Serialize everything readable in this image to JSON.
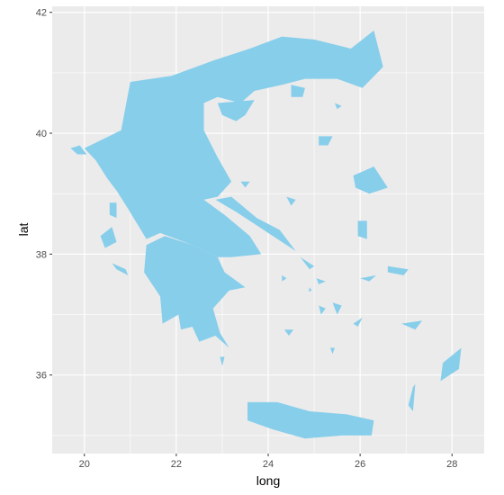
{
  "chart_data": {
    "type": "map",
    "region": "Greece",
    "xlabel": "long",
    "ylabel": "lat",
    "xlim": [
      19.3,
      28.7
    ],
    "ylim": [
      34.7,
      42.1
    ],
    "x_ticks": [
      20,
      22,
      24,
      26,
      28
    ],
    "x_tick_labels": [
      "20",
      "22",
      "24",
      "26",
      "28"
    ],
    "y_ticks": [
      36,
      38,
      40,
      42
    ],
    "y_tick_labels": [
      "36",
      "38",
      "40",
      "42"
    ],
    "grid": true,
    "fill_color": "#87CEEB",
    "panel_background": "#EBEBEB",
    "grid_color": "#FFFFFF",
    "shapes": [
      {
        "name": "mainland",
        "lonlat": [
          [
            20.0,
            39.75
          ],
          [
            20.8,
            40.05
          ],
          [
            21.0,
            40.85
          ],
          [
            21.9,
            40.95
          ],
          [
            22.8,
            41.2
          ],
          [
            23.6,
            41.4
          ],
          [
            24.3,
            41.6
          ],
          [
            25.0,
            41.55
          ],
          [
            25.8,
            41.4
          ],
          [
            26.3,
            41.7
          ],
          [
            26.5,
            41.1
          ],
          [
            26.05,
            40.75
          ],
          [
            25.5,
            40.9
          ],
          [
            24.8,
            40.9
          ],
          [
            24.3,
            40.8
          ],
          [
            23.7,
            40.7
          ],
          [
            23.4,
            40.5
          ],
          [
            22.9,
            40.6
          ],
          [
            22.6,
            40.5
          ],
          [
            22.6,
            40.05
          ],
          [
            22.9,
            39.6
          ],
          [
            23.2,
            39.2
          ],
          [
            22.9,
            38.95
          ],
          [
            22.6,
            38.9
          ],
          [
            23.05,
            38.65
          ],
          [
            23.6,
            38.3
          ],
          [
            23.85,
            38.0
          ],
          [
            23.2,
            37.95
          ],
          [
            22.9,
            37.95
          ],
          [
            22.35,
            38.15
          ],
          [
            21.65,
            38.35
          ],
          [
            21.35,
            38.25
          ],
          [
            20.95,
            38.75
          ],
          [
            20.7,
            39.05
          ],
          [
            20.5,
            39.25
          ],
          [
            20.25,
            39.55
          ]
        ]
      },
      {
        "name": "peloponnese",
        "lonlat": [
          [
            21.35,
            38.15
          ],
          [
            21.75,
            38.3
          ],
          [
            22.35,
            38.15
          ],
          [
            22.9,
            37.95
          ],
          [
            23.05,
            37.7
          ],
          [
            23.5,
            37.45
          ],
          [
            23.15,
            37.4
          ],
          [
            22.8,
            37.1
          ],
          [
            22.95,
            36.7
          ],
          [
            23.15,
            36.45
          ],
          [
            22.85,
            36.65
          ],
          [
            22.5,
            36.55
          ],
          [
            22.35,
            36.8
          ],
          [
            22.1,
            36.75
          ],
          [
            22.05,
            37.0
          ],
          [
            21.7,
            36.85
          ],
          [
            21.65,
            37.3
          ],
          [
            21.3,
            37.7
          ]
        ]
      },
      {
        "name": "evia",
        "lonlat": [
          [
            22.85,
            38.9
          ],
          [
            23.2,
            38.95
          ],
          [
            23.75,
            38.6
          ],
          [
            24.25,
            38.4
          ],
          [
            24.6,
            38.05
          ],
          [
            24.3,
            38.2
          ],
          [
            23.7,
            38.5
          ],
          [
            23.3,
            38.7
          ]
        ]
      },
      {
        "name": "chalkidiki",
        "lonlat": [
          [
            22.9,
            40.5
          ],
          [
            23.7,
            40.55
          ],
          [
            23.5,
            40.3
          ],
          [
            23.3,
            40.2
          ],
          [
            23.0,
            40.3
          ]
        ]
      },
      {
        "name": "corfu",
        "lonlat": [
          [
            19.7,
            39.75
          ],
          [
            19.9,
            39.8
          ],
          [
            20.05,
            39.65
          ],
          [
            19.85,
            39.65
          ]
        ]
      },
      {
        "name": "lefkada",
        "lonlat": [
          [
            20.55,
            38.85
          ],
          [
            20.7,
            38.85
          ],
          [
            20.7,
            38.6
          ],
          [
            20.55,
            38.65
          ]
        ]
      },
      {
        "name": "kefalonia",
        "lonlat": [
          [
            20.35,
            38.3
          ],
          [
            20.6,
            38.45
          ],
          [
            20.7,
            38.2
          ],
          [
            20.45,
            38.1
          ]
        ]
      },
      {
        "name": "zakynthos",
        "lonlat": [
          [
            20.6,
            37.85
          ],
          [
            20.9,
            37.75
          ],
          [
            20.95,
            37.65
          ],
          [
            20.7,
            37.75
          ]
        ]
      },
      {
        "name": "crete",
        "lonlat": [
          [
            23.55,
            35.55
          ],
          [
            24.2,
            35.55
          ],
          [
            24.9,
            35.4
          ],
          [
            25.7,
            35.35
          ],
          [
            26.3,
            35.25
          ],
          [
            26.25,
            35.0
          ],
          [
            25.6,
            35.0
          ],
          [
            24.8,
            34.95
          ],
          [
            24.1,
            35.1
          ],
          [
            23.55,
            35.25
          ]
        ]
      },
      {
        "name": "lesbos",
        "lonlat": [
          [
            25.85,
            39.3
          ],
          [
            26.3,
            39.45
          ],
          [
            26.6,
            39.1
          ],
          [
            26.2,
            39.0
          ],
          [
            25.9,
            39.1
          ]
        ]
      },
      {
        "name": "chios",
        "lonlat": [
          [
            25.95,
            38.55
          ],
          [
            26.15,
            38.55
          ],
          [
            26.15,
            38.25
          ],
          [
            25.95,
            38.3
          ]
        ]
      },
      {
        "name": "samos",
        "lonlat": [
          [
            26.6,
            37.8
          ],
          [
            27.05,
            37.75
          ],
          [
            26.95,
            37.65
          ],
          [
            26.6,
            37.7
          ]
        ]
      },
      {
        "name": "rhodes",
        "lonlat": [
          [
            27.8,
            36.2
          ],
          [
            28.2,
            36.45
          ],
          [
            28.15,
            36.1
          ],
          [
            27.75,
            35.9
          ]
        ]
      },
      {
        "name": "karpathos",
        "lonlat": [
          [
            27.15,
            35.8
          ],
          [
            27.2,
            35.85
          ],
          [
            27.15,
            35.4
          ],
          [
            27.05,
            35.5
          ]
        ]
      },
      {
        "name": "thasos",
        "lonlat": [
          [
            24.5,
            40.8
          ],
          [
            24.8,
            40.75
          ],
          [
            24.75,
            40.6
          ],
          [
            24.5,
            40.6
          ]
        ]
      },
      {
        "name": "samothrace",
        "lonlat": [
          [
            25.45,
            40.5
          ],
          [
            25.6,
            40.45
          ],
          [
            25.5,
            40.4
          ]
        ]
      },
      {
        "name": "limnos",
        "lonlat": [
          [
            25.1,
            39.95
          ],
          [
            25.4,
            39.95
          ],
          [
            25.3,
            39.8
          ],
          [
            25.1,
            39.8
          ]
        ]
      },
      {
        "name": "skiathos",
        "lonlat": [
          [
            23.4,
            39.2
          ],
          [
            23.6,
            39.2
          ],
          [
            23.5,
            39.1
          ]
        ]
      },
      {
        "name": "skyros",
        "lonlat": [
          [
            24.4,
            38.95
          ],
          [
            24.6,
            38.9
          ],
          [
            24.5,
            38.8
          ]
        ]
      },
      {
        "name": "andros",
        "lonlat": [
          [
            24.7,
            37.95
          ],
          [
            25.0,
            37.8
          ],
          [
            24.9,
            37.75
          ]
        ]
      },
      {
        "name": "naxos",
        "lonlat": [
          [
            25.4,
            37.2
          ],
          [
            25.6,
            37.15
          ],
          [
            25.5,
            37.0
          ]
        ]
      },
      {
        "name": "paros",
        "lonlat": [
          [
            25.1,
            37.15
          ],
          [
            25.25,
            37.1
          ],
          [
            25.15,
            37.0
          ]
        ]
      },
      {
        "name": "kythira",
        "lonlat": [
          [
            22.95,
            36.3
          ],
          [
            23.05,
            36.3
          ],
          [
            23.0,
            36.15
          ]
        ]
      },
      {
        "name": "milos",
        "lonlat": [
          [
            24.35,
            36.75
          ],
          [
            24.55,
            36.75
          ],
          [
            24.45,
            36.65
          ]
        ]
      },
      {
        "name": "santorini",
        "lonlat": [
          [
            25.35,
            36.45
          ],
          [
            25.45,
            36.45
          ],
          [
            25.4,
            36.35
          ]
        ]
      },
      {
        "name": "kos",
        "lonlat": [
          [
            26.9,
            36.85
          ],
          [
            27.35,
            36.9
          ],
          [
            27.2,
            36.75
          ]
        ]
      },
      {
        "name": "amorgos",
        "lonlat": [
          [
            25.85,
            36.85
          ],
          [
            26.05,
            36.95
          ],
          [
            25.95,
            36.8
          ]
        ]
      },
      {
        "name": "ikaria",
        "lonlat": [
          [
            26.0,
            37.6
          ],
          [
            26.35,
            37.65
          ],
          [
            26.2,
            37.55
          ]
        ]
      },
      {
        "name": "kea",
        "lonlat": [
          [
            24.3,
            37.65
          ],
          [
            24.4,
            37.6
          ],
          [
            24.3,
            37.55
          ]
        ]
      },
      {
        "name": "tinos",
        "lonlat": [
          [
            25.05,
            37.6
          ],
          [
            25.25,
            37.55
          ],
          [
            25.1,
            37.5
          ]
        ]
      },
      {
        "name": "syros",
        "lonlat": [
          [
            24.9,
            37.45
          ],
          [
            24.95,
            37.4
          ],
          [
            24.88,
            37.38
          ]
        ]
      }
    ]
  }
}
